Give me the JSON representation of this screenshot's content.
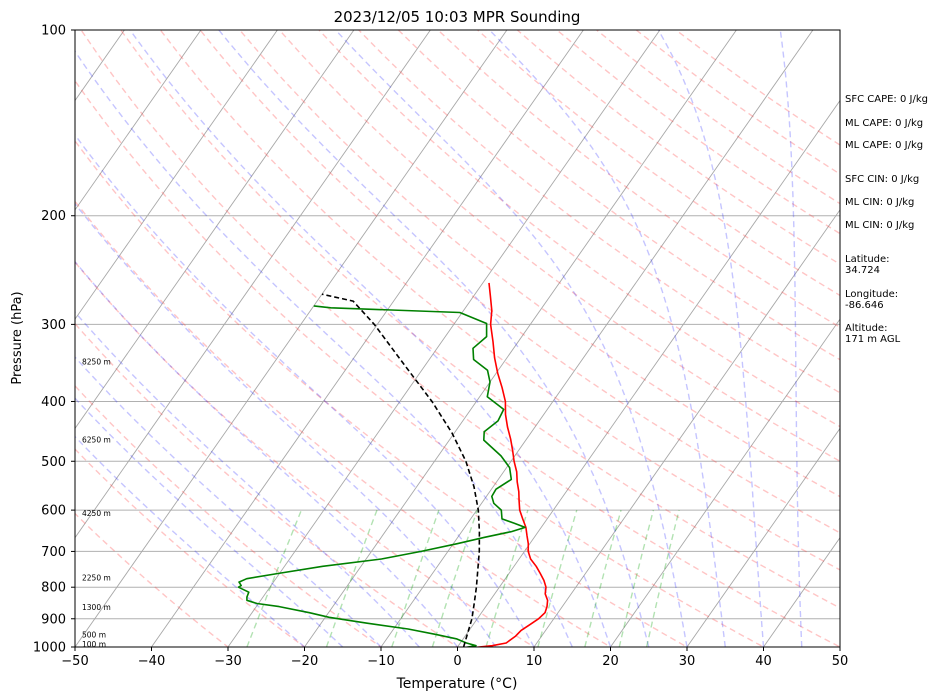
{
  "chart_data": {
    "type": "skew-t sounding",
    "title": "2023/12/05 10:03 MPR Sounding",
    "xlabel": "Temperature (°C)",
    "ylabel": "Pressure (hPa)",
    "xlim": [
      -50,
      50
    ],
    "ylim": [
      1000,
      100
    ],
    "yscale": "log",
    "xticks": [
      "−50",
      "−40",
      "−30",
      "−20",
      "−10",
      "0",
      "10",
      "20",
      "30",
      "40",
      "50"
    ],
    "yticks": [
      "100",
      "200",
      "300",
      "400",
      "500",
      "600",
      "700",
      "800",
      "900",
      "1000"
    ],
    "xtick_values": [
      -50,
      -40,
      -30,
      -20,
      -10,
      0,
      10,
      20,
      30,
      40,
      50
    ],
    "ytick_values": [
      100,
      200,
      300,
      400,
      500,
      600,
      700,
      800,
      900,
      1000
    ],
    "height_labels": [
      {
        "p": 990,
        "label": "100 m"
      },
      {
        "p": 957,
        "label": "500 m"
      },
      {
        "p": 863,
        "label": "1300 m"
      },
      {
        "p": 773,
        "label": "2250 m"
      },
      {
        "p": 608,
        "label": "4250 m"
      },
      {
        "p": 462,
        "label": "6250 m"
      },
      {
        "p": 345,
        "label": "8250 m"
      }
    ],
    "series": [
      {
        "role": "temperature",
        "color": "#ff0000",
        "points": [
          [
            1005,
            1.4
          ],
          [
            995,
            4.4
          ],
          [
            985,
            6.0
          ],
          [
            960,
            6.6
          ],
          [
            940,
            6.8
          ],
          [
            920,
            7.4
          ],
          [
            900,
            8.0
          ],
          [
            880,
            8.3
          ],
          [
            860,
            8.0
          ],
          [
            840,
            7.5
          ],
          [
            820,
            6.6
          ],
          [
            800,
            6.1
          ],
          [
            780,
            5.2
          ],
          [
            760,
            4.1
          ],
          [
            740,
            2.9
          ],
          [
            720,
            1.5
          ],
          [
            700,
            0.5
          ],
          [
            680,
            -0.2
          ],
          [
            660,
            -1.1
          ],
          [
            640,
            -2.0
          ],
          [
            620,
            -3.2
          ],
          [
            600,
            -4.4
          ],
          [
            580,
            -5.3
          ],
          [
            560,
            -6.2
          ],
          [
            540,
            -7.3
          ],
          [
            520,
            -8.3
          ],
          [
            500,
            -9.6
          ],
          [
            480,
            -10.8
          ],
          [
            460,
            -12.1
          ],
          [
            440,
            -13.6
          ],
          [
            420,
            -15.0
          ],
          [
            400,
            -16.2
          ],
          [
            380,
            -17.9
          ],
          [
            360,
            -19.8
          ],
          [
            340,
            -21.6
          ],
          [
            320,
            -23.3
          ],
          [
            300,
            -25.2
          ],
          [
            285,
            -26.3
          ],
          [
            270,
            -27.8
          ],
          [
            257,
            -29.2
          ]
        ]
      },
      {
        "role": "dewpoint",
        "color": "#008000",
        "points": [
          [
            1005,
            0.5
          ],
          [
            995,
            2.3
          ],
          [
            985,
            0.8
          ],
          [
            970,
            -0.9
          ],
          [
            955,
            -3.8
          ],
          [
            935,
            -8.1
          ],
          [
            915,
            -14.0
          ],
          [
            895,
            -19.5
          ],
          [
            880,
            -22.5
          ],
          [
            860,
            -27.0
          ],
          [
            850,
            -30.2
          ],
          [
            840,
            -31.8
          ],
          [
            830,
            -32.1
          ],
          [
            815,
            -32.3
          ],
          [
            800,
            -34.1
          ],
          [
            795,
            -33.9
          ],
          [
            785,
            -34.5
          ],
          [
            775,
            -33.8
          ],
          [
            760,
            -30.2
          ],
          [
            740,
            -25.0
          ],
          [
            720,
            -18.0
          ],
          [
            700,
            -13.5
          ],
          [
            680,
            -9.5
          ],
          [
            664,
            -6.5
          ],
          [
            650,
            -3.5
          ],
          [
            640,
            -2.1
          ],
          [
            630,
            -3.9
          ],
          [
            620,
            -5.9
          ],
          [
            600,
            -6.8
          ],
          [
            585,
            -8.4
          ],
          [
            570,
            -9.3
          ],
          [
            555,
            -9.4
          ],
          [
            535,
            -8.3
          ],
          [
            512,
            -9.6
          ],
          [
            490,
            -11.8
          ],
          [
            462,
            -15.5
          ],
          [
            448,
            -16.2
          ],
          [
            430,
            -15.4
          ],
          [
            412,
            -15.7
          ],
          [
            393,
            -19.0
          ],
          [
            372,
            -20.0
          ],
          [
            356,
            -21.4
          ],
          [
            342,
            -24.2
          ],
          [
            328,
            -25.3
          ],
          [
            314,
            -24.6
          ],
          [
            299,
            -25.8
          ],
          [
            287,
            -30.3
          ],
          [
            282,
            -47.6
          ],
          [
            280,
            -50.0
          ]
        ]
      },
      {
        "role": "parcel",
        "color": "#000000",
        "style": "dashed",
        "points": [
          [
            1000,
            0.8
          ],
          [
            900,
            -0.7
          ],
          [
            850,
            -1.8
          ],
          [
            800,
            -3.0
          ],
          [
            750,
            -4.4
          ],
          [
            700,
            -5.9
          ],
          [
            650,
            -7.7
          ],
          [
            600,
            -9.8
          ],
          [
            550,
            -12.5
          ],
          [
            500,
            -15.9
          ],
          [
            450,
            -20.3
          ],
          [
            400,
            -25.8
          ],
          [
            350,
            -32.6
          ],
          [
            300,
            -40.4
          ],
          [
            275,
            -45.3
          ],
          [
            268,
            -50.0
          ]
        ]
      }
    ],
    "background_lines": {
      "isotherms": "gray solid",
      "dry_adiabats": "red dashed",
      "moist_adiabats": "blue dashed",
      "mixing_ratio": "green dashed"
    },
    "annotations": [
      {
        "lines": [
          "SFC CAPE: 0 J/kg"
        ]
      },
      {
        "lines": [
          "ML CAPE: 0 J/kg"
        ]
      },
      {
        "lines": [
          "ML CAPE: 0 J/kg"
        ]
      },
      {
        "lines": [
          "SFC CIN: 0 J/kg"
        ]
      },
      {
        "lines": [
          "ML CIN: 0 J/kg"
        ]
      },
      {
        "lines": [
          "ML CIN: 0 J/kg"
        ]
      },
      {
        "lines": [
          "Latitude:",
          "34.724"
        ]
      },
      {
        "lines": [
          "Longitude:",
          "-86.646"
        ]
      },
      {
        "lines": [
          "Altitude:",
          "171 m AGL"
        ]
      }
    ]
  }
}
